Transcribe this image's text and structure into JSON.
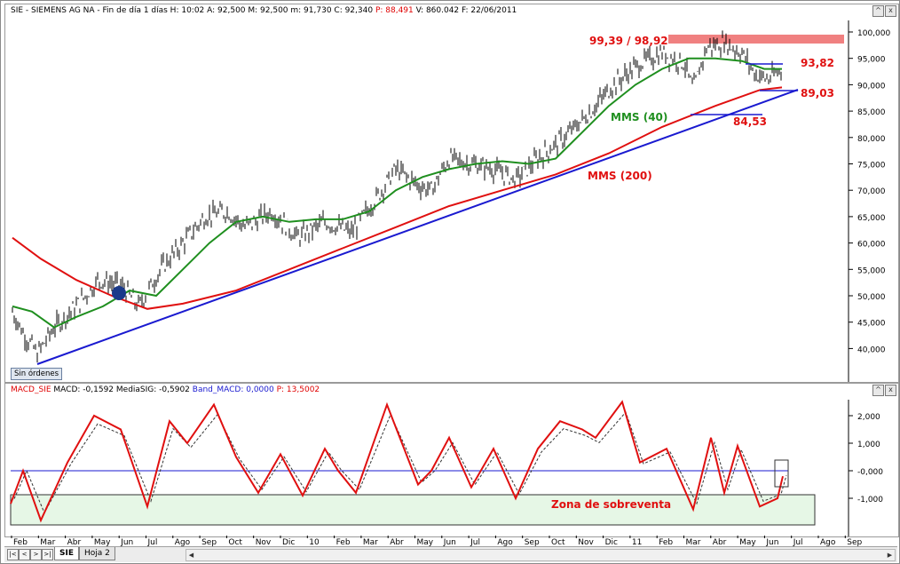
{
  "price_panel": {
    "title_prefix": "SIE - SIEMENS AG NA - Fin de día 1 días  H: 10:02  A: 92,500  M: 92,500  m: 91,730  C: 92,340",
    "title_p": "  P: 88,491",
    "title_suffix": "  V: 860.042  F: 22/06/2011",
    "y_ticks": [
      "100,000",
      "95,000",
      "90,000",
      "85,000",
      "80,000",
      "75,000",
      "70,000",
      "65,000",
      "60,000",
      "55,000",
      "50,000",
      "45,000",
      "40,000"
    ],
    "annotations": {
      "resistance": "99,39 / 98,92",
      "level_top": "93,82",
      "level_mid": "89,03",
      "level_low": "84,53",
      "mms40": "MMS (40)",
      "mms200": "MMS (200)"
    },
    "orders_button": "Sin órdenes"
  },
  "macd_panel": {
    "title_name": "MACD_SIE",
    "title_macd": "  MACD: -0,1592",
    "title_sig": "  MediaSIG: -0,5902",
    "title_band": "  Band_MACD: 0,0000",
    "title_p": "  P: 13,5002",
    "y_ticks": [
      "2,000",
      "1,000",
      "-0,000",
      "-1,000"
    ],
    "zone_label": "Zona de sobreventa"
  },
  "x_axis_labels": [
    "Feb",
    "Mar",
    "Abr",
    "May",
    "Jun",
    "Jul",
    "Ago",
    "Sep",
    "Oct",
    "Nov",
    "Dic",
    "10",
    "Feb",
    "Mar",
    "Abr",
    "May",
    "Jun",
    "Jul",
    "Ago",
    "Sep",
    "Oct",
    "Nov",
    "Dic",
    "11",
    "Feb",
    "Mar",
    "Abr",
    "May",
    "Jun",
    "Jul",
    "Ago",
    "Sep"
  ],
  "tabs": [
    "SIE",
    "Hoja 2"
  ],
  "colors": {
    "price": "#000000",
    "mms40": "#1f8f1f",
    "mms200": "#e01010",
    "trend": "#1a1ad0",
    "resistance_band": "#f08080",
    "zone_fill": "#e6f7e6",
    "annot_red": "#e01010"
  },
  "icons": {
    "nav_first": "first-icon",
    "nav_prev": "prev-icon",
    "nav_next": "next-icon",
    "nav_last": "last-icon"
  }
}
